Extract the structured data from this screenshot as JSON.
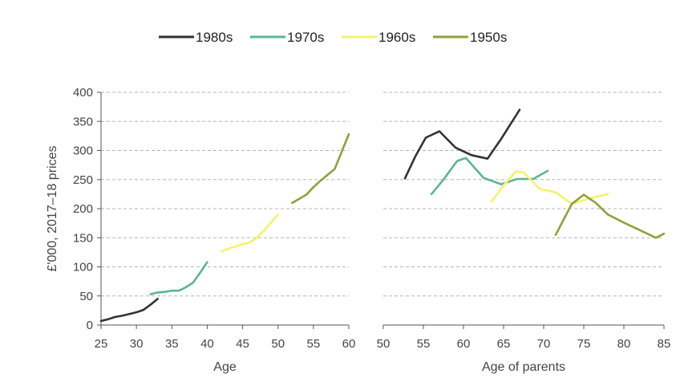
{
  "chart_data": [
    {
      "type": "line",
      "xlabel": "Age",
      "ylabel": "£'000, 2017–18 prices",
      "xlim": [
        25,
        60
      ],
      "ylim": [
        0,
        400
      ],
      "xticks": [
        25,
        30,
        35,
        40,
        45,
        50,
        55,
        60
      ],
      "yticks": [
        0,
        50,
        100,
        150,
        200,
        250,
        300,
        350,
        400
      ],
      "grid": "horizontal dashed",
      "series": [
        {
          "name": "1980s",
          "color": "#333333",
          "x": [
            25,
            26,
            27,
            28,
            29,
            30,
            31,
            32,
            33
          ],
          "y": [
            7,
            10,
            14,
            16,
            19,
            22,
            26,
            35,
            45
          ]
        },
        {
          "name": "1970s",
          "color": "#5bb692",
          "x": [
            32,
            33,
            34,
            35,
            36,
            37,
            38,
            39,
            40
          ],
          "y": [
            53,
            56,
            57,
            59,
            59,
            65,
            73,
            90,
            108
          ]
        },
        {
          "name": "1960s",
          "color": "#f4f36b",
          "x": [
            42,
            43,
            44,
            45,
            46,
            47,
            48,
            49,
            50
          ],
          "y": [
            127,
            131,
            135,
            139,
            142,
            150,
            162,
            176,
            190
          ]
        },
        {
          "name": "1950s",
          "color": "#8ba33a",
          "x": [
            52,
            53,
            54,
            55,
            56,
            57,
            58,
            59,
            60
          ],
          "y": [
            210,
            217,
            224,
            237,
            248,
            258,
            268,
            298,
            328
          ]
        }
      ]
    },
    {
      "type": "line",
      "xlabel": "Age of parents",
      "xlim": [
        50,
        85
      ],
      "ylim": [
        0,
        400
      ],
      "xticks": [
        50,
        55,
        60,
        65,
        70,
        75,
        80,
        85
      ],
      "grid": "horizontal dashed",
      "series": [
        {
          "name": "1980s",
          "color": "#333333",
          "x": [
            52.7,
            54,
            55.3,
            57,
            59,
            61,
            63,
            64.7,
            67
          ],
          "y": [
            252,
            290,
            322,
            333,
            305,
            292,
            286,
            320,
            370
          ]
        },
        {
          "name": "1970s",
          "color": "#5bb692",
          "x": [
            56,
            57.5,
            59.2,
            60.3,
            62.5,
            64.7,
            66.7,
            68.7,
            70.5
          ],
          "y": [
            225,
            250,
            282,
            287,
            253,
            242,
            251,
            251,
            265
          ]
        },
        {
          "name": "1960s",
          "color": "#f4f36b",
          "x": [
            63.5,
            65,
            66.5,
            67.5,
            69.5,
            71.5,
            73.5,
            75.5,
            78
          ],
          "y": [
            212,
            240,
            264,
            262,
            234,
            228,
            208,
            217,
            225
          ]
        },
        {
          "name": "1950s",
          "color": "#8ba33a",
          "x": [
            71.5,
            73.5,
            75,
            76.5,
            78,
            80,
            82,
            84,
            85
          ],
          "y": [
            155,
            208,
            224,
            210,
            190,
            176,
            163,
            150,
            157
          ]
        }
      ]
    }
  ]
}
